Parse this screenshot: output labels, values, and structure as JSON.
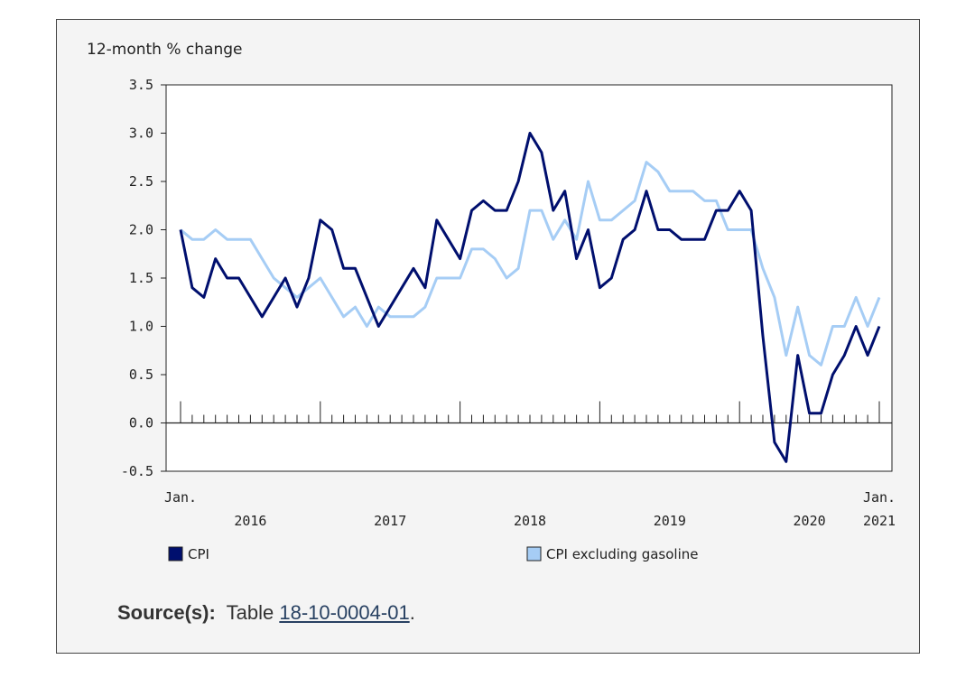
{
  "chart_data": {
    "type": "line",
    "ylabel": "12-month % change",
    "ylim": [
      -0.5,
      3.5
    ],
    "yticks": [
      "3.5",
      "3.0",
      "2.5",
      "2.0",
      "1.5",
      "1.0",
      "0.5",
      "0.0",
      "-0.5"
    ],
    "ytick_values": [
      3.5,
      3.0,
      2.5,
      2.0,
      1.5,
      1.0,
      0.5,
      0.0,
      -0.5
    ],
    "x_start_label": {
      "line1": "Jan.",
      "line2": ""
    },
    "x_end_label": {
      "line1": "Jan.",
      "line2": "2021"
    },
    "year_labels": [
      "2016",
      "2017",
      "2018",
      "2019",
      "2020"
    ],
    "series": [
      {
        "name": "CPI",
        "color": "#000f6e",
        "values": [
          2.0,
          1.4,
          1.3,
          1.7,
          1.5,
          1.5,
          1.3,
          1.1,
          1.3,
          1.5,
          1.2,
          1.5,
          2.1,
          2.0,
          1.6,
          1.6,
          1.3,
          1.0,
          1.2,
          1.4,
          1.6,
          1.4,
          2.1,
          1.9,
          1.7,
          2.2,
          2.3,
          2.2,
          2.2,
          2.5,
          3.0,
          2.8,
          2.2,
          2.4,
          1.7,
          2.0,
          1.4,
          1.5,
          1.9,
          2.0,
          2.4,
          2.0,
          2.0,
          1.9,
          1.9,
          1.9,
          2.2,
          2.2,
          2.4,
          2.2,
          0.9,
          -0.2,
          -0.4,
          0.7,
          0.1,
          0.1,
          0.5,
          0.7,
          1.0,
          0.7,
          1.0
        ]
      },
      {
        "name": "CPI excluding gasoline",
        "color": "#a6cdf5",
        "values": [
          2.0,
          1.9,
          1.9,
          2.0,
          1.9,
          1.9,
          1.9,
          1.7,
          1.5,
          1.4,
          1.3,
          1.4,
          1.5,
          1.3,
          1.1,
          1.2,
          1.0,
          1.2,
          1.1,
          1.1,
          1.1,
          1.2,
          1.5,
          1.5,
          1.5,
          1.8,
          1.8,
          1.7,
          1.5,
          1.6,
          2.2,
          2.2,
          1.9,
          2.1,
          1.9,
          2.5,
          2.1,
          2.1,
          2.2,
          2.3,
          2.7,
          2.6,
          2.4,
          2.4,
          2.4,
          2.3,
          2.3,
          2.0,
          2.0,
          2.0,
          1.6,
          1.3,
          0.7,
          1.2,
          0.7,
          0.6,
          1.0,
          1.0,
          1.3,
          1.0,
          1.3
        ]
      }
    ]
  },
  "source": {
    "label": "Source(s):",
    "prefix": "Table",
    "link_text": "18-10-0004-01",
    "suffix": "."
  }
}
